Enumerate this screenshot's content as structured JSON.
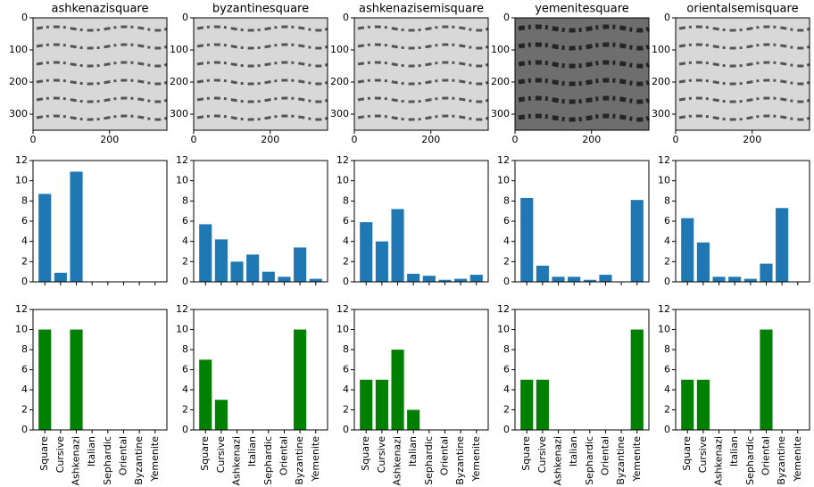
{
  "chart_data": [
    {
      "type": "image",
      "title": "ashkenazisquare",
      "xlim": [
        0,
        350
      ],
      "ylim": [
        350,
        0
      ],
      "xticks": [
        0,
        200
      ],
      "yticks": [
        0,
        100,
        200,
        300
      ]
    },
    {
      "type": "image",
      "title": "byzantinesquare",
      "xlim": [
        0,
        350
      ],
      "ylim": [
        350,
        0
      ],
      "xticks": [
        0,
        200
      ],
      "yticks": [
        0,
        100,
        200,
        300
      ]
    },
    {
      "type": "image",
      "title": "ashkenazisemisquare",
      "xlim": [
        0,
        350
      ],
      "ylim": [
        350,
        0
      ],
      "xticks": [
        0,
        200
      ],
      "yticks": [
        0,
        100,
        200,
        300
      ]
    },
    {
      "type": "image",
      "title": "yemenitesquare",
      "xlim": [
        0,
        350
      ],
      "ylim": [
        350,
        0
      ],
      "xticks": [
        0,
        200
      ],
      "yticks": [
        0,
        100,
        200,
        300
      ]
    },
    {
      "type": "image",
      "title": "orientalsemisquare",
      "xlim": [
        0,
        350
      ],
      "ylim": [
        350,
        0
      ],
      "xticks": [
        0,
        200
      ],
      "yticks": [
        0,
        100,
        200,
        300
      ]
    },
    {
      "type": "bar",
      "categories": [
        null,
        null,
        null,
        null,
        null,
        null,
        null,
        null
      ],
      "values": [
        8.7,
        0.9,
        10.9,
        0,
        0,
        0,
        0,
        0
      ],
      "color": "#1f77b4",
      "ylim": [
        0,
        12
      ],
      "yticks": [
        0,
        2,
        4,
        6,
        8,
        10,
        12
      ]
    },
    {
      "type": "bar",
      "categories": [
        null,
        null,
        null,
        null,
        null,
        null,
        null,
        null
      ],
      "values": [
        5.7,
        4.2,
        2.0,
        2.7,
        1.0,
        0.5,
        3.4,
        0.3
      ],
      "color": "#1f77b4",
      "ylim": [
        0,
        12
      ],
      "yticks": [
        0,
        2,
        4,
        6,
        8,
        10,
        12
      ]
    },
    {
      "type": "bar",
      "categories": [
        null,
        null,
        null,
        null,
        null,
        null,
        null,
        null
      ],
      "values": [
        5.9,
        4.0,
        7.2,
        0.8,
        0.6,
        0.2,
        0.3,
        0.7
      ],
      "color": "#1f77b4",
      "ylim": [
        0,
        12
      ],
      "yticks": [
        0,
        2,
        4,
        6,
        8,
        10,
        12
      ]
    },
    {
      "type": "bar",
      "categories": [
        null,
        null,
        null,
        null,
        null,
        null,
        null,
        null
      ],
      "values": [
        8.3,
        1.6,
        0.5,
        0.5,
        0.2,
        0.7,
        0,
        8.1
      ],
      "color": "#1f77b4",
      "ylim": [
        0,
        12
      ],
      "yticks": [
        0,
        2,
        4,
        6,
        8,
        10,
        12
      ]
    },
    {
      "type": "bar",
      "categories": [
        null,
        null,
        null,
        null,
        null,
        null,
        null,
        null
      ],
      "values": [
        6.3,
        3.9,
        0.5,
        0.5,
        0.3,
        1.8,
        7.3,
        0
      ],
      "color": "#1f77b4",
      "ylim": [
        0,
        12
      ],
      "yticks": [
        0,
        2,
        4,
        6,
        8,
        10,
        12
      ]
    },
    {
      "type": "bar",
      "categories": [
        "Square",
        "Cursive",
        "Ashkenazi",
        "Italian",
        "Sephardic",
        "Oriental",
        "Byzantine",
        "Yemenite"
      ],
      "values": [
        10,
        0,
        10,
        0,
        0,
        0,
        0,
        0
      ],
      "color": "#008000",
      "ylim": [
        0,
        12
      ],
      "yticks": [
        0,
        2,
        4,
        6,
        8,
        10,
        12
      ]
    },
    {
      "type": "bar",
      "categories": [
        "Square",
        "Cursive",
        "Ashkenazi",
        "Italian",
        "Sephardic",
        "Oriental",
        "Byzantine",
        "Yemenite"
      ],
      "values": [
        7,
        3,
        0,
        0,
        0,
        0,
        10,
        0
      ],
      "color": "#008000",
      "ylim": [
        0,
        12
      ],
      "yticks": [
        0,
        2,
        4,
        6,
        8,
        10,
        12
      ]
    },
    {
      "type": "bar",
      "categories": [
        "Square",
        "Cursive",
        "Ashkenazi",
        "Italian",
        "Sephardic",
        "Oriental",
        "Byzantine",
        "Yemenite"
      ],
      "values": [
        5,
        5,
        8,
        2,
        0,
        0,
        0,
        0
      ],
      "color": "#008000",
      "ylim": [
        0,
        12
      ],
      "yticks": [
        0,
        2,
        4,
        6,
        8,
        10,
        12
      ]
    },
    {
      "type": "bar",
      "categories": [
        "Square",
        "Cursive",
        "Ashkenazi",
        "Italian",
        "Sephardic",
        "Oriental",
        "Byzantine",
        "Yemenite"
      ],
      "values": [
        5,
        5,
        0,
        0,
        0,
        0,
        0,
        10
      ],
      "color": "#008000",
      "ylim": [
        0,
        12
      ],
      "yticks": [
        0,
        2,
        4,
        6,
        8,
        10,
        12
      ]
    },
    {
      "type": "bar",
      "categories": [
        "Square",
        "Cursive",
        "Ashkenazi",
        "Italian",
        "Sephardic",
        "Oriental",
        "Byzantine",
        "Yemenite"
      ],
      "values": [
        5,
        5,
        0,
        0,
        0,
        10,
        0,
        0
      ],
      "color": "#008000",
      "ylim": [
        0,
        12
      ],
      "yticks": [
        0,
        2,
        4,
        6,
        8,
        10,
        12
      ]
    }
  ]
}
